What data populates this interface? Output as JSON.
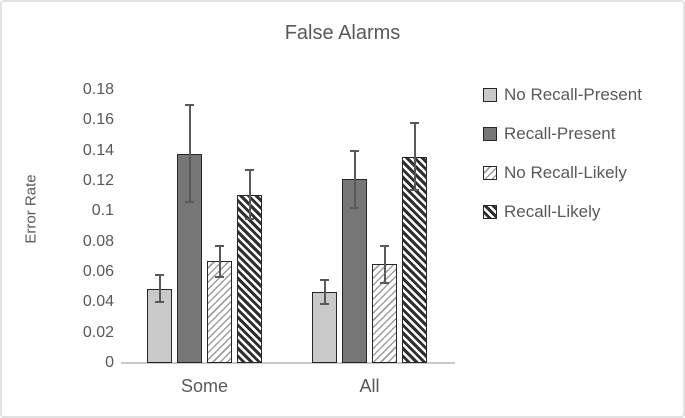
{
  "chart_data": {
    "type": "bar",
    "title": "False Alarms",
    "xlabel": "",
    "ylabel": "Error Rate",
    "categories": [
      "Some",
      "All"
    ],
    "series": [
      {
        "name": "No Recall-Present",
        "fill": "solid-light",
        "values": [
          0.049,
          0.047
        ],
        "errors": [
          0.009,
          0.008
        ]
      },
      {
        "name": "Recall-Present",
        "fill": "solid-dark",
        "values": [
          0.138,
          0.121
        ],
        "errors": [
          0.032,
          0.019
        ]
      },
      {
        "name": "No Recall-Likely",
        "fill": "hatch-light",
        "values": [
          0.067,
          0.065
        ],
        "errors": [
          0.01,
          0.012
        ]
      },
      {
        "name": "Recall-Likely",
        "fill": "hatch-dark",
        "values": [
          0.111,
          0.136
        ],
        "errors": [
          0.016,
          0.022
        ]
      }
    ],
    "ylim": [
      0,
      0.18
    ],
    "y_ticks": [
      "0",
      "0.02",
      "0.04",
      "0.06",
      "0.08",
      "0.1",
      "0.12",
      "0.14",
      "0.16",
      "0.18"
    ],
    "grid": false,
    "legend_position": "right",
    "colors": {
      "text": "#595959",
      "axis_line": "#c9c9c9",
      "bar_light": "#c9c9c9",
      "bar_dark": "#777777",
      "bar_border": "#262626",
      "error_bar": "#595959",
      "hatch_light_stripe": "#9e9e9e",
      "hatch_dark_stripe": "#2f2f2f",
      "frame_border": "#e2e2e2"
    }
  }
}
